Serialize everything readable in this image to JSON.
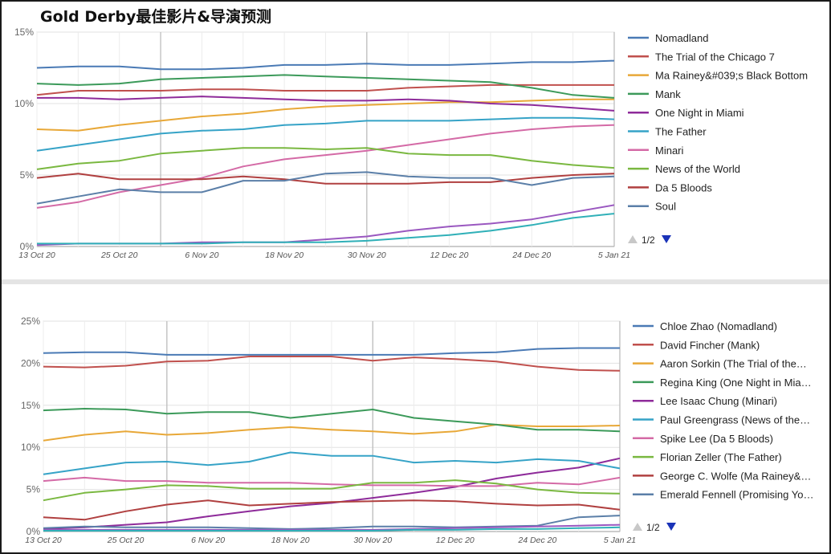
{
  "title": "Gold Derby最佳影片&导演预测",
  "pager": {
    "label": "1/2",
    "prev_icon": "triangle-up-grey",
    "next_icon": "triangle-down-blue"
  },
  "chart_data": [
    {
      "type": "line",
      "title": "Gold Derby最佳影片&导演预测",
      "x": [
        "13 Oct 20",
        "19 Oct 20",
        "25 Oct 20",
        "31 Oct 20",
        "6 Nov 20",
        "12 Nov 20",
        "18 Nov 20",
        "24 Nov 20",
        "30 Nov 20",
        "6 Dec 20",
        "12 Dec 20",
        "18 Dec 20",
        "24 Dec 20",
        "30 Dec 20",
        "5 Jan 21"
      ],
      "x_ticks": [
        "13 Oct 20",
        "25 Oct 20",
        "6 Nov 20",
        "18 Nov 20",
        "30 Nov 20",
        "12 Dec 20",
        "24 Dec 20",
        "5 Jan 21"
      ],
      "y_ticks": [
        "0%",
        "5%",
        "10%",
        "15%"
      ],
      "ylim": [
        0,
        15
      ],
      "grid": true,
      "legend": "right",
      "series": [
        {
          "name": "Nomadland",
          "color": "#4a7ab5",
          "values": [
            12.5,
            12.6,
            12.6,
            12.4,
            12.4,
            12.5,
            12.7,
            12.7,
            12.8,
            12.7,
            12.7,
            12.8,
            12.9,
            12.9,
            13.0
          ]
        },
        {
          "name": "The Trial of the Chicago 7",
          "color": "#c0504d",
          "values": [
            10.6,
            10.9,
            10.9,
            10.9,
            11.0,
            11.0,
            10.9,
            10.9,
            10.9,
            11.1,
            11.2,
            11.3,
            11.3,
            11.3,
            11.3
          ]
        },
        {
          "name": "Ma Rainey&#039;s Black Bottom",
          "color": "#e8a838",
          "values": [
            8.2,
            8.1,
            8.5,
            8.8,
            9.1,
            9.3,
            9.6,
            9.8,
            9.9,
            10.0,
            10.1,
            10.1,
            10.2,
            10.3,
            10.3
          ]
        },
        {
          "name": "Mank",
          "color": "#3c9a5a",
          "values": [
            11.4,
            11.3,
            11.4,
            11.7,
            11.8,
            11.9,
            12.0,
            11.9,
            11.8,
            11.7,
            11.6,
            11.5,
            11.1,
            10.6,
            10.4
          ]
        },
        {
          "name": "One Night in Miami",
          "color": "#8e2b9a",
          "values": [
            10.4,
            10.4,
            10.3,
            10.4,
            10.5,
            10.4,
            10.3,
            10.2,
            10.2,
            10.3,
            10.2,
            10.0,
            9.9,
            9.7,
            9.5
          ]
        },
        {
          "name": "The Father",
          "color": "#36a3c7",
          "values": [
            6.7,
            7.1,
            7.5,
            7.9,
            8.1,
            8.2,
            8.5,
            8.6,
            8.8,
            8.8,
            8.8,
            8.9,
            9.0,
            9.0,
            8.9
          ]
        },
        {
          "name": "Minari",
          "color": "#d46aa6",
          "values": [
            2.7,
            3.1,
            3.8,
            4.3,
            4.8,
            5.6,
            6.1,
            6.4,
            6.7,
            7.1,
            7.5,
            7.9,
            8.2,
            8.4,
            8.5
          ]
        },
        {
          "name": "News of the World",
          "color": "#7ab840",
          "values": [
            5.4,
            5.8,
            6.0,
            6.5,
            6.7,
            6.9,
            6.9,
            6.8,
            6.9,
            6.5,
            6.4,
            6.4,
            6.0,
            5.7,
            5.5
          ]
        },
        {
          "name": "Da 5 Bloods",
          "color": "#b04040",
          "values": [
            4.8,
            5.1,
            4.7,
            4.7,
            4.7,
            4.9,
            4.7,
            4.4,
            4.4,
            4.4,
            4.5,
            4.5,
            4.8,
            5.0,
            5.1
          ]
        },
        {
          "name": "Soul",
          "color": "#5b7fa8",
          "values": [
            3.0,
            3.5,
            4.0,
            3.8,
            3.8,
            4.6,
            4.6,
            5.1,
            5.2,
            4.9,
            4.8,
            4.8,
            4.3,
            4.8,
            4.9
          ]
        },
        {
          "name": "",
          "color": "#9a58c0",
          "values": [
            0.1,
            0.2,
            0.2,
            0.2,
            0.3,
            0.3,
            0.3,
            0.5,
            0.7,
            1.1,
            1.4,
            1.6,
            1.9,
            2.4,
            2.9
          ]
        },
        {
          "name": "",
          "color": "#30b0b8",
          "values": [
            0.2,
            0.2,
            0.2,
            0.2,
            0.2,
            0.3,
            0.3,
            0.3,
            0.4,
            0.6,
            0.8,
            1.1,
            1.5,
            2.0,
            2.3
          ]
        }
      ]
    },
    {
      "type": "line",
      "x": [
        "13 Oct 20",
        "19 Oct 20",
        "25 Oct 20",
        "31 Oct 20",
        "6 Nov 20",
        "12 Nov 20",
        "18 Nov 20",
        "24 Nov 20",
        "30 Nov 20",
        "6 Dec 20",
        "12 Dec 20",
        "18 Dec 20",
        "24 Dec 20",
        "30 Dec 20",
        "5 Jan 21"
      ],
      "x_ticks": [
        "13 Oct 20",
        "25 Oct 20",
        "6 Nov 20",
        "18 Nov 20",
        "30 Nov 20",
        "12 Dec 20",
        "24 Dec 20",
        "5 Jan 21"
      ],
      "y_ticks": [
        "0%",
        "5%",
        "10%",
        "15%",
        "20%",
        "25%"
      ],
      "ylim": [
        0,
        25
      ],
      "grid": true,
      "legend": "right",
      "series": [
        {
          "name": "Chloe Zhao (Nomadland)",
          "color": "#4a7ab5",
          "values": [
            21.2,
            21.3,
            21.3,
            21.0,
            21.0,
            21.0,
            21.0,
            21.0,
            21.0,
            21.0,
            21.2,
            21.3,
            21.7,
            21.8,
            21.8
          ]
        },
        {
          "name": "David Fincher (Mank)",
          "color": "#c0504d",
          "values": [
            19.6,
            19.5,
            19.7,
            20.2,
            20.3,
            20.8,
            20.8,
            20.8,
            20.3,
            20.7,
            20.5,
            20.2,
            19.6,
            19.2,
            19.1
          ]
        },
        {
          "name": "Aaron Sorkin (The Trial of the…",
          "color": "#e8a838",
          "values": [
            10.8,
            11.5,
            11.9,
            11.5,
            11.7,
            12.1,
            12.4,
            12.1,
            11.9,
            11.6,
            11.9,
            12.7,
            12.5,
            12.5,
            12.6
          ]
        },
        {
          "name": "Regina King (One Night in Mia…",
          "color": "#3c9a5a",
          "values": [
            14.4,
            14.6,
            14.5,
            14.0,
            14.2,
            14.2,
            13.5,
            14.0,
            14.5,
            13.5,
            13.1,
            12.7,
            12.1,
            12.1,
            11.9
          ]
        },
        {
          "name": "Lee Isaac Chung (Minari)",
          "color": "#8e2b9a",
          "values": [
            0.3,
            0.5,
            0.8,
            1.1,
            1.8,
            2.4,
            3.0,
            3.4,
            4.0,
            4.6,
            5.3,
            6.3,
            7.0,
            7.6,
            8.7
          ]
        },
        {
          "name": "Paul Greengrass (News of the…",
          "color": "#36a3c7",
          "values": [
            6.8,
            7.5,
            8.2,
            8.3,
            7.9,
            8.3,
            9.4,
            9.0,
            9.0,
            8.2,
            8.4,
            8.2,
            8.6,
            8.4,
            7.5
          ]
        },
        {
          "name": "Spike Lee (Da 5 Bloods)",
          "color": "#d46aa6",
          "values": [
            6.0,
            6.4,
            6.0,
            6.0,
            5.8,
            5.8,
            5.8,
            5.6,
            5.5,
            5.5,
            5.4,
            5.4,
            5.8,
            5.6,
            6.4
          ]
        },
        {
          "name": "Florian Zeller (The Father)",
          "color": "#7ab840",
          "values": [
            3.7,
            4.6,
            5.0,
            5.5,
            5.4,
            5.1,
            5.1,
            5.1,
            5.8,
            5.8,
            6.1,
            5.7,
            5.0,
            4.6,
            4.5
          ]
        },
        {
          "name": "George C. Wolfe (Ma Rainey&…",
          "color": "#b04040",
          "values": [
            1.7,
            1.4,
            2.4,
            3.2,
            3.7,
            3.1,
            3.3,
            3.5,
            3.6,
            3.7,
            3.6,
            3.3,
            3.1,
            3.2,
            2.6
          ]
        },
        {
          "name": "Emerald Fennell (Promising Yo…",
          "color": "#5b7fa8",
          "values": [
            0.4,
            0.6,
            0.5,
            0.5,
            0.5,
            0.4,
            0.3,
            0.4,
            0.6,
            0.6,
            0.5,
            0.6,
            0.7,
            1.7,
            1.9
          ]
        },
        {
          "name": "",
          "color": "#9a58c0",
          "values": [
            0.2,
            0.2,
            0.2,
            0.2,
            0.2,
            0.2,
            0.2,
            0.2,
            0.2,
            0.3,
            0.4,
            0.5,
            0.6,
            0.7,
            0.8
          ]
        },
        {
          "name": "",
          "color": "#30b0b8",
          "values": [
            0.1,
            0.1,
            0.1,
            0.1,
            0.1,
            0.1,
            0.1,
            0.1,
            0.1,
            0.2,
            0.2,
            0.3,
            0.3,
            0.4,
            0.5
          ]
        }
      ]
    }
  ]
}
